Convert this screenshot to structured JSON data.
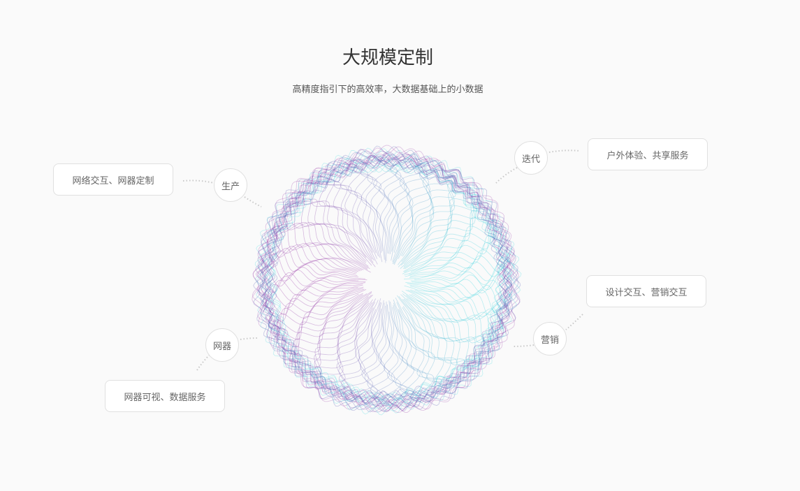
{
  "header": {
    "title": "大规模定制",
    "subtitle": "高精度指引下的高效率，大数据基础上的小数据"
  },
  "nodes": [
    {
      "label": "生产",
      "description": "网络交互、网器定制"
    },
    {
      "label": "迭代",
      "description": "户外体验、共享服务"
    },
    {
      "label": "营销",
      "description": "设计交互、营销交互"
    },
    {
      "label": "网器",
      "description": "网器可视、数据服务"
    }
  ],
  "colors": {
    "magenta": "#9b3aa8",
    "cyan": "#3fd6e0",
    "indigo": "#4b4fb0"
  }
}
